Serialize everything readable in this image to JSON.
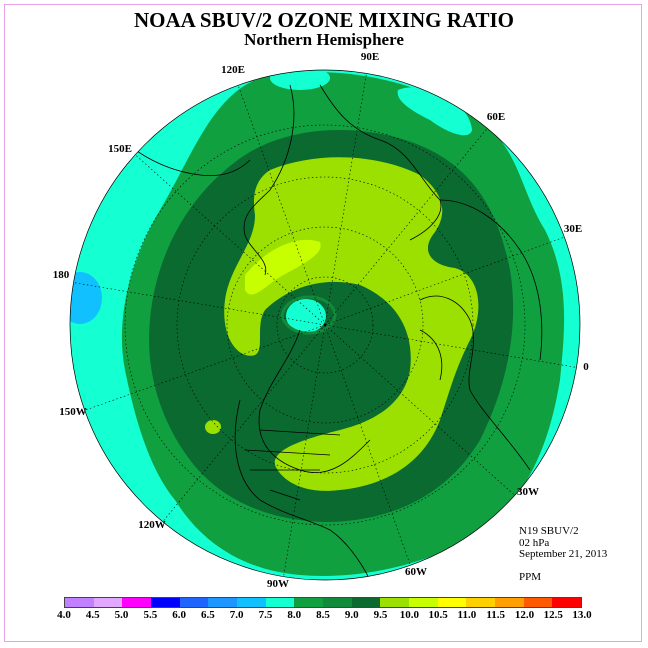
{
  "title": "NOAA SBUV/2 OZONE MIXING RATIO",
  "subtitle": "Northern Hemisphere",
  "map": {
    "projection": "north polar stereographic",
    "longitude_labels": [
      "90E",
      "60E",
      "30E",
      "0",
      "30W",
      "60W",
      "90W",
      "120W",
      "150W",
      "180",
      "150E",
      "120E"
    ]
  },
  "info": {
    "instrument": "N19 SBUV/2",
    "level": "02 hPa",
    "date": "September 21, 2013",
    "units": "PPM"
  },
  "colorbar": {
    "ticks": [
      "4.0",
      "4.5",
      "5.0",
      "5.5",
      "6.0",
      "6.5",
      "7.0",
      "7.5",
      "8.0",
      "8.5",
      "9.0",
      "9.5",
      "10.0",
      "10.5",
      "11.0",
      "11.5",
      "12.0",
      "12.5",
      "13.0"
    ],
    "colors": [
      "#c080ff",
      "#e0a8ff",
      "#ff00ff",
      "#0000ff",
      "#1e64ff",
      "#1e96ff",
      "#10c0ff",
      "#14ffd2",
      "#10a040",
      "#128a3c",
      "#0a6a30",
      "#9be000",
      "#c8ff00",
      "#ffff00",
      "#ffd000",
      "#ffa000",
      "#ff5a00",
      "#ff0000",
      "#8c5028"
    ]
  }
}
